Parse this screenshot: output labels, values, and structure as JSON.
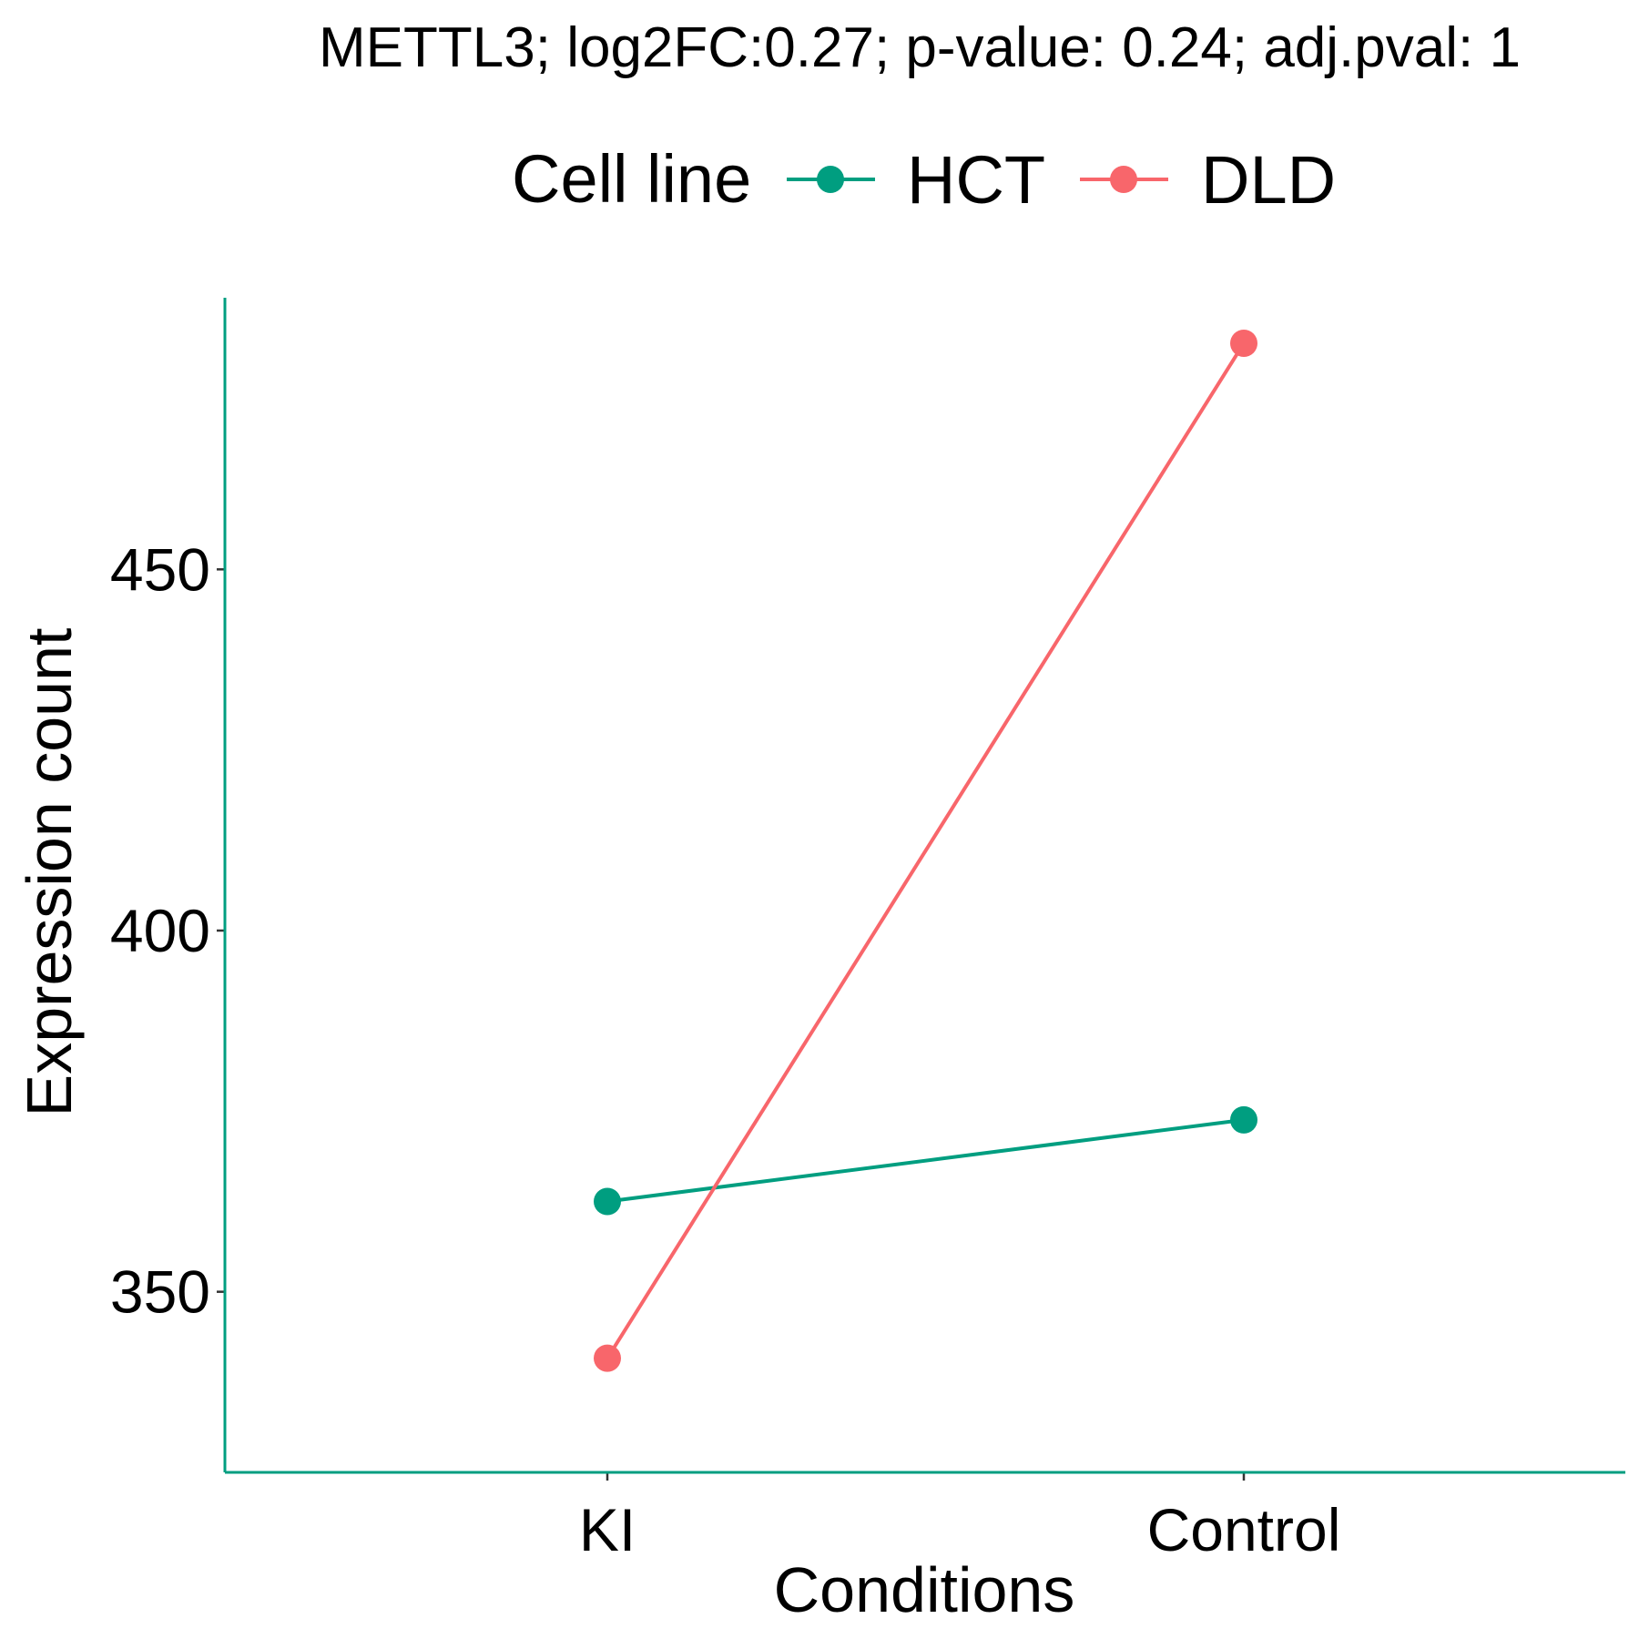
{
  "chart_data": {
    "type": "line",
    "title": "METTL3; log2FC:0.27; p-value: 0.24; adj.pval: 1",
    "legend": {
      "title": "Cell line",
      "position": "top"
    },
    "categories": [
      "KI",
      "Control"
    ],
    "series": [
      {
        "name": "HCT",
        "color": "#009E80",
        "values": [
          362.5,
          373.8
        ]
      },
      {
        "name": "DLD",
        "color": "#F8666B",
        "values": [
          340.8,
          481.3
        ]
      }
    ],
    "xlabel": "Conditions",
    "ylabel": "Expression count",
    "yticks": [
      350,
      400,
      450
    ],
    "ylim": [
      325,
      487.6
    ],
    "axis_color": "#009E80",
    "grid": false
  }
}
